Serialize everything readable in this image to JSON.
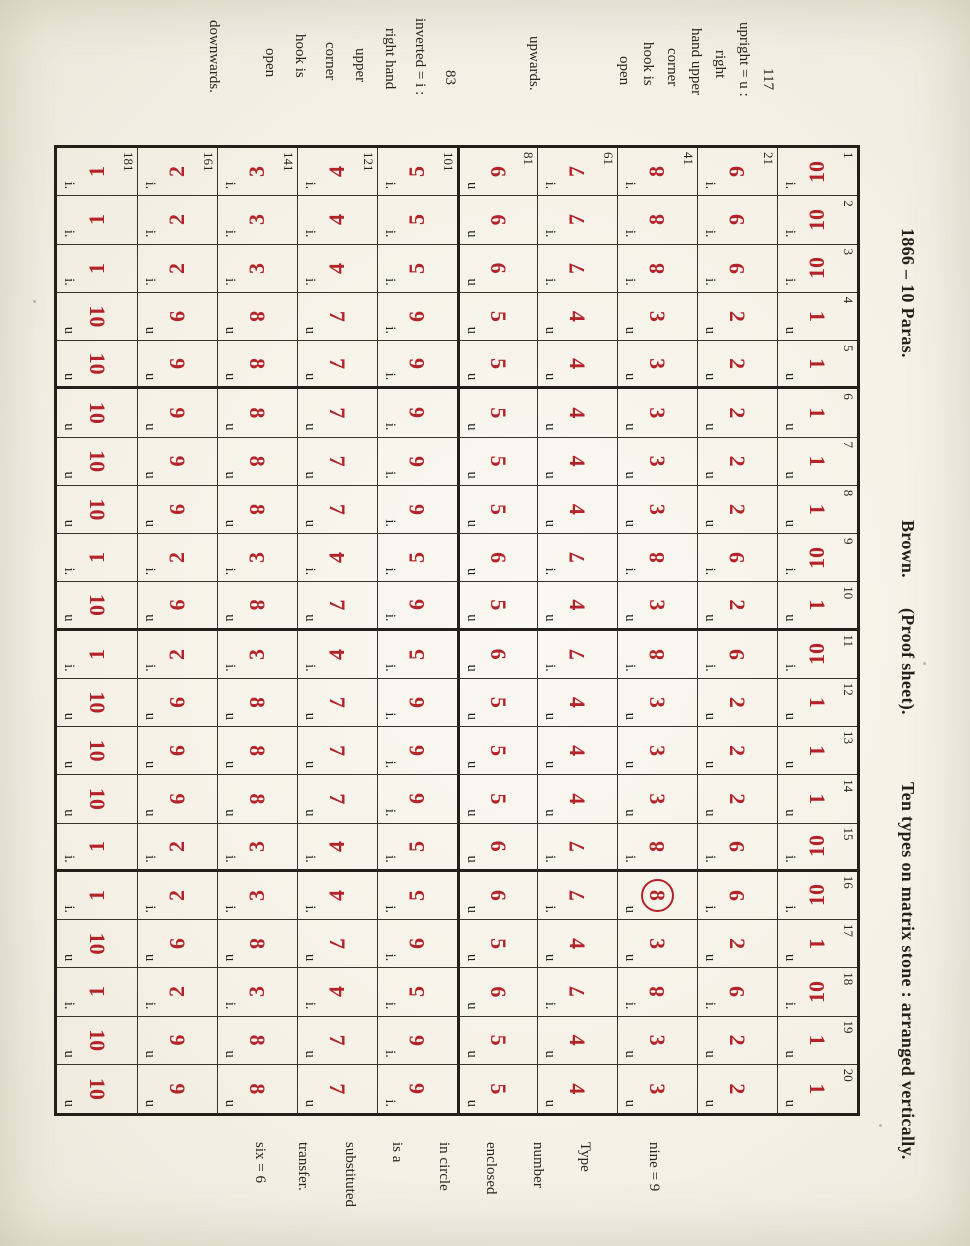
{
  "header": {
    "segments": [
      "1866 – 10 Paras.",
      "Brown.",
      "(Proof sheet).",
      "Ten types on matrix stone : arranged vertically."
    ]
  },
  "notes": {
    "upright": {
      "lines": [
        "117",
        "upright = u :",
        "right",
        "hand upper",
        "corner",
        "hook is",
        "open",
        "upwards."
      ]
    },
    "inverted": {
      "lines": [
        "83",
        "inverted = i :",
        "right hand",
        "upper",
        "corner",
        "hook is",
        "open",
        "downwards."
      ]
    },
    "right_margin": {
      "nine": "nine = 9",
      "lines": [
        "Type",
        "number",
        "enclosed",
        "in circle",
        "is a",
        "substituted",
        "transfer."
      ],
      "six": "six = 6"
    }
  },
  "legend": {
    "upright_letter": "u",
    "inverted_letter": "i.",
    "type_color": "#b3232a",
    "ink_color": "#241f19"
  },
  "table": {
    "rows": [
      {
        "cells": [
          {
            "v": "10",
            "o": "i",
            "n": "1"
          },
          {
            "v": "10",
            "o": "i",
            "n": "2"
          },
          {
            "v": "10",
            "o": "i",
            "n": "3"
          },
          {
            "v": "1",
            "o": "u",
            "n": "4"
          },
          {
            "v": "1",
            "o": "u",
            "n": "5"
          },
          {
            "v": "1",
            "o": "u",
            "n": "6"
          },
          {
            "v": "1",
            "o": "u",
            "n": "7"
          },
          {
            "v": "1",
            "o": "u",
            "n": "8"
          },
          {
            "v": "10",
            "o": "i",
            "n": "9"
          },
          {
            "v": "1",
            "o": "u",
            "n": "10"
          },
          {
            "v": "10",
            "o": "i",
            "n": "11"
          },
          {
            "v": "1",
            "o": "u",
            "n": "12"
          },
          {
            "v": "1",
            "o": "u",
            "n": "13"
          },
          {
            "v": "1",
            "o": "u",
            "n": "14"
          },
          {
            "v": "10",
            "o": "i",
            "n": "15"
          },
          {
            "v": "10",
            "o": "i",
            "n": "16"
          },
          {
            "v": "1",
            "o": "u",
            "n": "17"
          },
          {
            "v": "10",
            "o": "i",
            "n": "18"
          },
          {
            "v": "1",
            "o": "u",
            "n": "19"
          },
          {
            "v": "1",
            "o": "u",
            "n": "20"
          }
        ]
      },
      {
        "cells": [
          {
            "v": "9",
            "o": "i",
            "n": "21"
          },
          {
            "v": "9",
            "o": "i"
          },
          {
            "v": "9",
            "o": "i"
          },
          {
            "v": "2",
            "o": "u"
          },
          {
            "v": "2",
            "o": "u"
          },
          {
            "v": "2",
            "o": "u"
          },
          {
            "v": "2",
            "o": "u"
          },
          {
            "v": "2",
            "o": "u"
          },
          {
            "v": "9",
            "o": "i"
          },
          {
            "v": "2",
            "o": "u"
          },
          {
            "v": "9",
            "o": "i"
          },
          {
            "v": "2",
            "o": "u"
          },
          {
            "v": "2",
            "o": "u"
          },
          {
            "v": "2",
            "o": "u"
          },
          {
            "v": "9",
            "o": "i"
          },
          {
            "v": "9",
            "o": "i"
          },
          {
            "v": "2",
            "o": "u"
          },
          {
            "v": "9",
            "o": "i"
          },
          {
            "v": "2",
            "o": "u"
          },
          {
            "v": "2",
            "o": "u"
          }
        ]
      },
      {
        "cells": [
          {
            "v": "8",
            "o": "i",
            "n": "41"
          },
          {
            "v": "8",
            "o": "i"
          },
          {
            "v": "8",
            "o": "i"
          },
          {
            "v": "3",
            "o": "u"
          },
          {
            "v": "3",
            "o": "u"
          },
          {
            "v": "3",
            "o": "u"
          },
          {
            "v": "3",
            "o": "u"
          },
          {
            "v": "3",
            "o": "u"
          },
          {
            "v": "8",
            "o": "i"
          },
          {
            "v": "3",
            "o": "u"
          },
          {
            "v": "8",
            "o": "i"
          },
          {
            "v": "3",
            "o": "u"
          },
          {
            "v": "3",
            "o": "u"
          },
          {
            "v": "3",
            "o": "u"
          },
          {
            "v": "8",
            "o": "i"
          },
          {
            "v": "8",
            "o": "u",
            "s": 1
          },
          {
            "v": "3",
            "o": "u"
          },
          {
            "v": "8",
            "o": "i"
          },
          {
            "v": "3",
            "o": "u"
          },
          {
            "v": "3",
            "o": "u"
          }
        ]
      },
      {
        "cells": [
          {
            "v": "7",
            "o": "i",
            "n": "61"
          },
          {
            "v": "7",
            "o": "i"
          },
          {
            "v": "7",
            "o": "i"
          },
          {
            "v": "4",
            "o": "u"
          },
          {
            "v": "4",
            "o": "u"
          },
          {
            "v": "4",
            "o": "u"
          },
          {
            "v": "4",
            "o": "u"
          },
          {
            "v": "4",
            "o": "u"
          },
          {
            "v": "7",
            "o": "i"
          },
          {
            "v": "4",
            "o": "u"
          },
          {
            "v": "7",
            "o": "i"
          },
          {
            "v": "4",
            "o": "u"
          },
          {
            "v": "4",
            "o": "u"
          },
          {
            "v": "4",
            "o": "u"
          },
          {
            "v": "7",
            "o": "i"
          },
          {
            "v": "7",
            "o": "i"
          },
          {
            "v": "4",
            "o": "u"
          },
          {
            "v": "7",
            "o": "i"
          },
          {
            "v": "4",
            "o": "u"
          },
          {
            "v": "4",
            "o": "u"
          }
        ]
      },
      {
        "cells": [
          {
            "v": "6",
            "o": "u",
            "n": "81"
          },
          {
            "v": "6",
            "o": "u"
          },
          {
            "v": "6",
            "o": "u"
          },
          {
            "v": "5",
            "o": "u"
          },
          {
            "v": "5",
            "o": "u"
          },
          {
            "v": "5",
            "o": "u"
          },
          {
            "v": "5",
            "o": "u"
          },
          {
            "v": "5",
            "o": "u"
          },
          {
            "v": "6",
            "o": "u"
          },
          {
            "v": "5",
            "o": "u"
          },
          {
            "v": "6",
            "o": "u"
          },
          {
            "v": "5",
            "o": "u"
          },
          {
            "v": "5",
            "o": "u"
          },
          {
            "v": "5",
            "o": "u"
          },
          {
            "v": "6",
            "o": "u"
          },
          {
            "v": "6",
            "o": "u"
          },
          {
            "v": "5",
            "o": "u"
          },
          {
            "v": "6",
            "o": "u"
          },
          {
            "v": "5",
            "o": "u"
          },
          {
            "v": "5",
            "o": "u"
          }
        ]
      },
      {
        "cells": [
          {
            "v": "5",
            "o": "i",
            "n": "101"
          },
          {
            "v": "5",
            "o": "i"
          },
          {
            "v": "5",
            "o": "i"
          },
          {
            "v": "6",
            "o": "i"
          },
          {
            "v": "6",
            "o": "i"
          },
          {
            "v": "6",
            "o": "i"
          },
          {
            "v": "6",
            "o": "i"
          },
          {
            "v": "6",
            "o": "i"
          },
          {
            "v": "5",
            "o": "i"
          },
          {
            "v": "6",
            "o": "i"
          },
          {
            "v": "5",
            "o": "i"
          },
          {
            "v": "6",
            "o": "i"
          },
          {
            "v": "6",
            "o": "i"
          },
          {
            "v": "6",
            "o": "i"
          },
          {
            "v": "5",
            "o": "i"
          },
          {
            "v": "5",
            "o": "i"
          },
          {
            "v": "6",
            "o": "i"
          },
          {
            "v": "5",
            "o": "i"
          },
          {
            "v": "6",
            "o": "i"
          },
          {
            "v": "6",
            "o": "i"
          }
        ]
      },
      {
        "cells": [
          {
            "v": "4",
            "o": "i",
            "n": "121"
          },
          {
            "v": "4",
            "o": "i"
          },
          {
            "v": "4",
            "o": "i"
          },
          {
            "v": "7",
            "o": "u"
          },
          {
            "v": "7",
            "o": "u"
          },
          {
            "v": "7",
            "o": "u"
          },
          {
            "v": "7",
            "o": "u"
          },
          {
            "v": "7",
            "o": "u"
          },
          {
            "v": "4",
            "o": "i"
          },
          {
            "v": "7",
            "o": "u"
          },
          {
            "v": "4",
            "o": "i"
          },
          {
            "v": "7",
            "o": "u"
          },
          {
            "v": "7",
            "o": "u"
          },
          {
            "v": "7",
            "o": "u"
          },
          {
            "v": "4",
            "o": "i"
          },
          {
            "v": "4",
            "o": "i"
          },
          {
            "v": "7",
            "o": "u"
          },
          {
            "v": "4",
            "o": "i"
          },
          {
            "v": "7",
            "o": "u"
          },
          {
            "v": "7",
            "o": "u"
          }
        ]
      },
      {
        "cells": [
          {
            "v": "3",
            "o": "i",
            "n": "141"
          },
          {
            "v": "3",
            "o": "i"
          },
          {
            "v": "3",
            "o": "i"
          },
          {
            "v": "8",
            "o": "u"
          },
          {
            "v": "8",
            "o": "u"
          },
          {
            "v": "8",
            "o": "u"
          },
          {
            "v": "8",
            "o": "u"
          },
          {
            "v": "8",
            "o": "u"
          },
          {
            "v": "3",
            "o": "i"
          },
          {
            "v": "8",
            "o": "u"
          },
          {
            "v": "3",
            "o": "i"
          },
          {
            "v": "8",
            "o": "u"
          },
          {
            "v": "8",
            "o": "u"
          },
          {
            "v": "8",
            "o": "u"
          },
          {
            "v": "3",
            "o": "i"
          },
          {
            "v": "3",
            "o": "i"
          },
          {
            "v": "8",
            "o": "u"
          },
          {
            "v": "3",
            "o": "i"
          },
          {
            "v": "8",
            "o": "u"
          },
          {
            "v": "8",
            "o": "u"
          }
        ]
      },
      {
        "cells": [
          {
            "v": "2",
            "o": "i",
            "n": "161"
          },
          {
            "v": "2",
            "o": "i"
          },
          {
            "v": "2",
            "o": "i"
          },
          {
            "v": "9",
            "o": "u"
          },
          {
            "v": "9",
            "o": "u"
          },
          {
            "v": "9",
            "o": "u"
          },
          {
            "v": "9",
            "o": "u"
          },
          {
            "v": "9",
            "o": "u"
          },
          {
            "v": "2",
            "o": "i"
          },
          {
            "v": "9",
            "o": "u"
          },
          {
            "v": "2",
            "o": "i"
          },
          {
            "v": "9",
            "o": "u"
          },
          {
            "v": "9",
            "o": "u"
          },
          {
            "v": "9",
            "o": "u"
          },
          {
            "v": "2",
            "o": "i"
          },
          {
            "v": "2",
            "o": "i"
          },
          {
            "v": "9",
            "o": "u"
          },
          {
            "v": "2",
            "o": "i"
          },
          {
            "v": "9",
            "o": "u"
          },
          {
            "v": "9",
            "o": "u"
          }
        ]
      },
      {
        "cells": [
          {
            "v": "1",
            "o": "i",
            "n": "181"
          },
          {
            "v": "1",
            "o": "i"
          },
          {
            "v": "1",
            "o": "i"
          },
          {
            "v": "10",
            "o": "u"
          },
          {
            "v": "10",
            "o": "u"
          },
          {
            "v": "10",
            "o": "u"
          },
          {
            "v": "10",
            "o": "u"
          },
          {
            "v": "10",
            "o": "u"
          },
          {
            "v": "1",
            "o": "i"
          },
          {
            "v": "10",
            "o": "u"
          },
          {
            "v": "1",
            "o": "i"
          },
          {
            "v": "10",
            "o": "u"
          },
          {
            "v": "10",
            "o": "u"
          },
          {
            "v": "10",
            "o": "u"
          },
          {
            "v": "1",
            "o": "i"
          },
          {
            "v": "1",
            "o": "i"
          },
          {
            "v": "10",
            "o": "u"
          },
          {
            "v": "1",
            "o": "i"
          },
          {
            "v": "10",
            "o": "u"
          },
          {
            "v": "10",
            "o": "u"
          }
        ]
      }
    ]
  }
}
